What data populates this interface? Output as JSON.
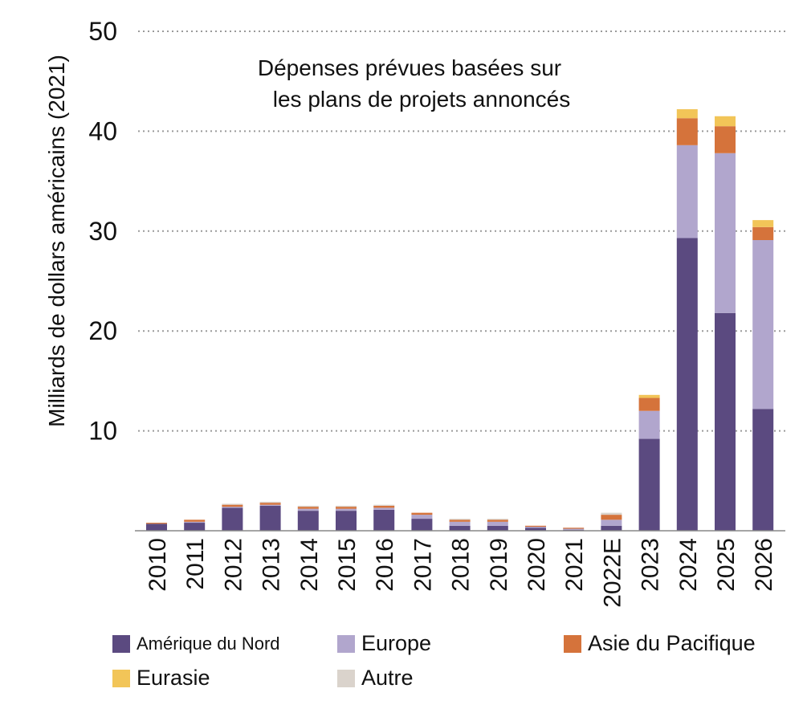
{
  "chart_data": {
    "type": "bar",
    "stacked": true,
    "annotation": "Dépenses prévues basées sur les plans de projets annoncés",
    "annotation_lines": [
      "Dépenses prévues basées sur",
      "les plans de projets annoncés"
    ],
    "ylabel": "Milliards de dollars américains (2021)",
    "xlabel": "",
    "ylim": [
      0,
      50
    ],
    "yticks": [
      10,
      20,
      30,
      40,
      50
    ],
    "grid": "horizontal-dotted",
    "legend_position": "bottom",
    "categories": [
      "2010",
      "2011",
      "2012",
      "2013",
      "2014",
      "2015",
      "2016",
      "2017",
      "2018",
      "2019",
      "2020",
      "2021",
      "2022E",
      "2023",
      "2024",
      "2025",
      "2026"
    ],
    "series": [
      {
        "name": "Amérique du Nord",
        "color": "#5b4a80",
        "values": [
          0.7,
          0.8,
          2.3,
          2.5,
          2.0,
          2.0,
          2.1,
          1.2,
          0.5,
          0.5,
          0.3,
          0.1,
          0.5,
          9.2,
          29.3,
          21.8,
          12.2
        ]
      },
      {
        "name": "Europe",
        "color": "#b1a6cd",
        "values": [
          0.0,
          0.1,
          0.1,
          0.1,
          0.2,
          0.2,
          0.2,
          0.4,
          0.4,
          0.4,
          0.1,
          0.1,
          0.6,
          2.8,
          9.3,
          16.0,
          16.9
        ]
      },
      {
        "name": "Asie du Pacifique",
        "color": "#d5733b",
        "values": [
          0.1,
          0.2,
          0.2,
          0.2,
          0.2,
          0.2,
          0.2,
          0.2,
          0.2,
          0.2,
          0.1,
          0.1,
          0.5,
          1.3,
          2.7,
          2.7,
          1.3
        ]
      },
      {
        "name": "Eurasie",
        "color": "#f2c558",
        "values": [
          0.0,
          0.0,
          0.0,
          0.0,
          0.0,
          0.0,
          0.0,
          0.0,
          0.0,
          0.0,
          0.0,
          0.0,
          0.0,
          0.3,
          0.9,
          1.0,
          0.7
        ]
      },
      {
        "name": "Autre",
        "color": "#dad3cc",
        "values": [
          0.0,
          0.0,
          0.1,
          0.1,
          0.1,
          0.1,
          0.1,
          0.0,
          0.1,
          0.1,
          0.0,
          0.0,
          0.2,
          0.0,
          0.0,
          0.0,
          0.0
        ]
      }
    ]
  }
}
